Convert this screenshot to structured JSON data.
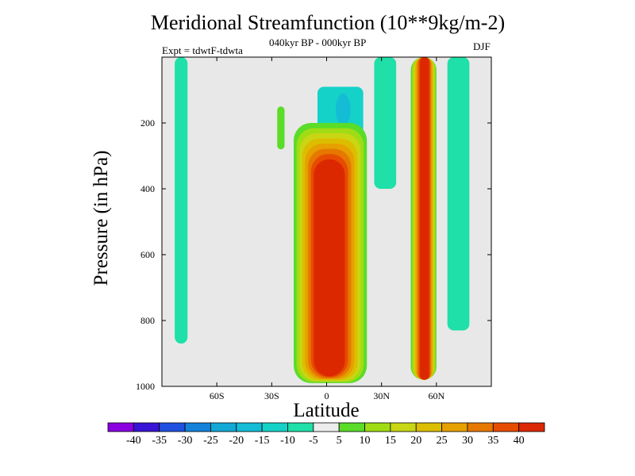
{
  "chart_data": {
    "type": "heatmap",
    "title": "Meridional Streamfunction (10**9kg/m-2)",
    "subtitle": "040kyr BP - 000kyr BP",
    "experiment_label": "Expt = tdwtF-tdwta",
    "season": "DJF",
    "xlabel": "Latitude",
    "ylabel": "Pressure (in hPa)",
    "xlim": [
      -90,
      90
    ],
    "ylim": [
      1000,
      0
    ],
    "x_ticks": [
      {
        "value": -60,
        "label": "60S"
      },
      {
        "value": -30,
        "label": "30S"
      },
      {
        "value": 0,
        "label": "0"
      },
      {
        "value": 30,
        "label": "30N"
      },
      {
        "value": 60,
        "label": "60N"
      }
    ],
    "y_ticks": [
      {
        "value": 200,
        "label": "200"
      },
      {
        "value": 400,
        "label": "400"
      },
      {
        "value": 600,
        "label": "600"
      },
      {
        "value": 800,
        "label": "800"
      },
      {
        "value": 1000,
        "label": "1000"
      }
    ],
    "features": [
      {
        "name": "southern-high-latitude-cell",
        "lat": [
          -83,
          -76
        ],
        "p": [
          0,
          870
        ],
        "value": -7.5
      },
      {
        "name": "southern-upper-patch",
        "lat": [
          -27,
          -23
        ],
        "p": [
          150,
          280
        ],
        "value": 7.5
      },
      {
        "name": "tropical-positive-cell",
        "lat": [
          -18,
          22
        ],
        "p": [
          200,
          990
        ],
        "core_lat": [
          -7,
          10
        ],
        "core_p": [
          310,
          970
        ],
        "max_value": 40
      },
      {
        "name": "tropical-upper-negative",
        "lat": [
          -5,
          20
        ],
        "p": [
          90,
          250
        ],
        "value": -12
      },
      {
        "name": "northern-negative-column",
        "lat": [
          26,
          38
        ],
        "p": [
          0,
          400
        ],
        "value": -7.5
      },
      {
        "name": "northern-positive-jet",
        "lat": [
          46,
          60
        ],
        "p": [
          0,
          980
        ],
        "core_lat": [
          51,
          56
        ],
        "max_value": 40
      },
      {
        "name": "northern-negative-strip",
        "lat": [
          66,
          78
        ],
        "p": [
          0,
          830
        ],
        "value": -10
      }
    ],
    "colorbar": {
      "levels": [
        "-40",
        "-35",
        "-30",
        "-25",
        "-20",
        "-15",
        "-10",
        "-5",
        "5",
        "10",
        "15",
        "20",
        "25",
        "30",
        "35",
        "40"
      ],
      "colors": [
        "#8a00e0",
        "#3a14d6",
        "#2050e0",
        "#1482d8",
        "#14a8d6",
        "#14bcd6",
        "#14d2c8",
        "#1ee0a8",
        "#ececec",
        "#5adc28",
        "#a0dc14",
        "#c8d614",
        "#dcbe00",
        "#e6a000",
        "#e67800",
        "#e64c00",
        "#dc2800"
      ]
    },
    "background_color": "#e8e8e8"
  }
}
